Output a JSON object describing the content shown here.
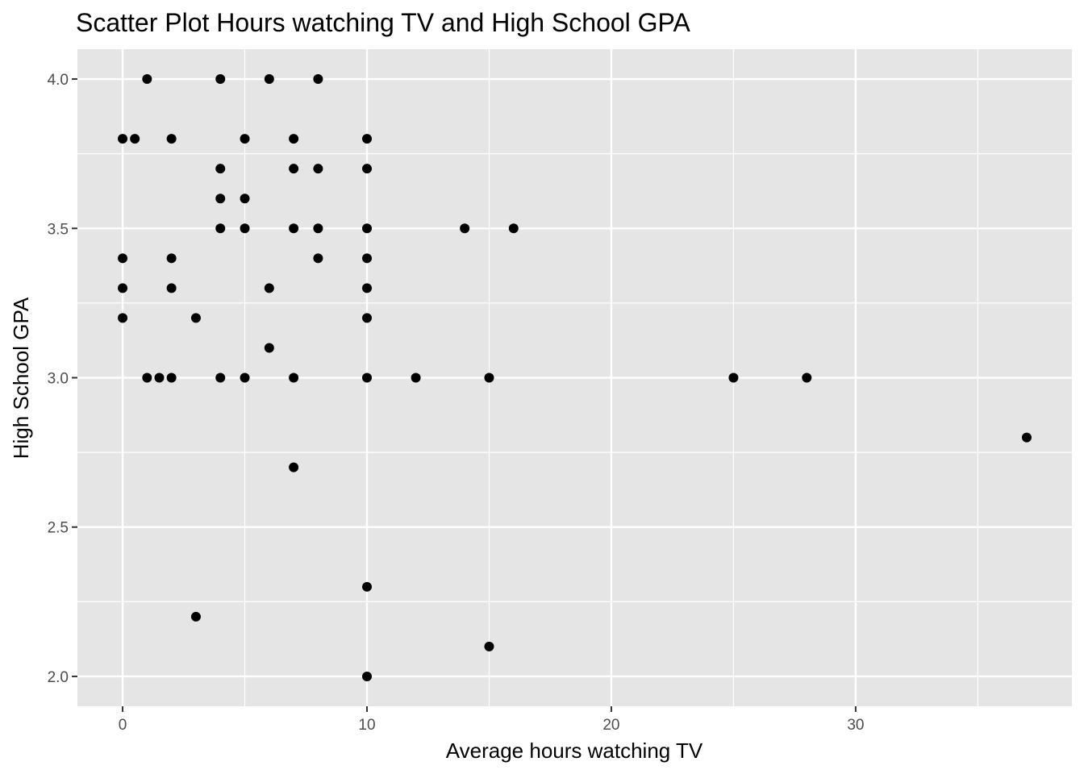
{
  "chart_data": {
    "type": "scatter",
    "title": "Scatter Plot Hours watching TV and High School GPA",
    "xlabel": "Average hours watching TV",
    "ylabel": "High School GPA",
    "xlim": [
      -1.85,
      38.85
    ],
    "ylim": [
      1.9,
      4.1
    ],
    "x_ticks": [
      0,
      10,
      20,
      30
    ],
    "x_tick_labels": [
      "0",
      "10",
      "20",
      "30"
    ],
    "x_minor_ticks": [
      5,
      15,
      25,
      35
    ],
    "y_ticks": [
      2.0,
      2.5,
      3.0,
      3.5,
      4.0
    ],
    "y_tick_labels": [
      "2.0",
      "2.5",
      "3.0",
      "3.5",
      "4.0"
    ],
    "y_minor_ticks": [
      2.25,
      2.75,
      3.25,
      3.75
    ],
    "grid": true,
    "legend": "none",
    "colors": {
      "panel_background": "#e5e5e5",
      "grid": "#ffffff",
      "point": "#000000",
      "tick_label": "#4d4d4d"
    },
    "points": [
      {
        "x": 1,
        "y": 4.0
      },
      {
        "x": 4,
        "y": 4.0
      },
      {
        "x": 6,
        "y": 4.0
      },
      {
        "x": 8,
        "y": 4.0
      },
      {
        "x": 0,
        "y": 3.8
      },
      {
        "x": 0.5,
        "y": 3.8
      },
      {
        "x": 2,
        "y": 3.8
      },
      {
        "x": 5,
        "y": 3.8
      },
      {
        "x": 7,
        "y": 3.8
      },
      {
        "x": 10,
        "y": 3.8
      },
      {
        "x": 4,
        "y": 3.7
      },
      {
        "x": 7,
        "y": 3.7
      },
      {
        "x": 8,
        "y": 3.7
      },
      {
        "x": 10,
        "y": 3.7
      },
      {
        "x": 4,
        "y": 3.6
      },
      {
        "x": 5,
        "y": 3.6
      },
      {
        "x": 4,
        "y": 3.5
      },
      {
        "x": 5,
        "y": 3.5
      },
      {
        "x": 7,
        "y": 3.5
      },
      {
        "x": 8,
        "y": 3.5
      },
      {
        "x": 10,
        "y": 3.5
      },
      {
        "x": 14,
        "y": 3.5
      },
      {
        "x": 16,
        "y": 3.5
      },
      {
        "x": 0,
        "y": 3.4
      },
      {
        "x": 2,
        "y": 3.4
      },
      {
        "x": 8,
        "y": 3.4
      },
      {
        "x": 10,
        "y": 3.4
      },
      {
        "x": 0,
        "y": 3.3
      },
      {
        "x": 2,
        "y": 3.3
      },
      {
        "x": 6,
        "y": 3.3
      },
      {
        "x": 10,
        "y": 3.3
      },
      {
        "x": 0,
        "y": 3.2
      },
      {
        "x": 3,
        "y": 3.2
      },
      {
        "x": 10,
        "y": 3.2
      },
      {
        "x": 6,
        "y": 3.1
      },
      {
        "x": 1,
        "y": 3.0
      },
      {
        "x": 1.5,
        "y": 3.0
      },
      {
        "x": 2,
        "y": 3.0
      },
      {
        "x": 4,
        "y": 3.0
      },
      {
        "x": 5,
        "y": 3.0
      },
      {
        "x": 7,
        "y": 3.0
      },
      {
        "x": 10,
        "y": 3.0
      },
      {
        "x": 12,
        "y": 3.0
      },
      {
        "x": 15,
        "y": 3.0
      },
      {
        "x": 25,
        "y": 3.0
      },
      {
        "x": 28,
        "y": 3.0
      },
      {
        "x": 37,
        "y": 2.8
      },
      {
        "x": 7,
        "y": 2.7
      },
      {
        "x": 10,
        "y": 2.3
      },
      {
        "x": 3,
        "y": 2.2
      },
      {
        "x": 15,
        "y": 2.1
      },
      {
        "x": 10,
        "y": 2.0
      }
    ]
  }
}
